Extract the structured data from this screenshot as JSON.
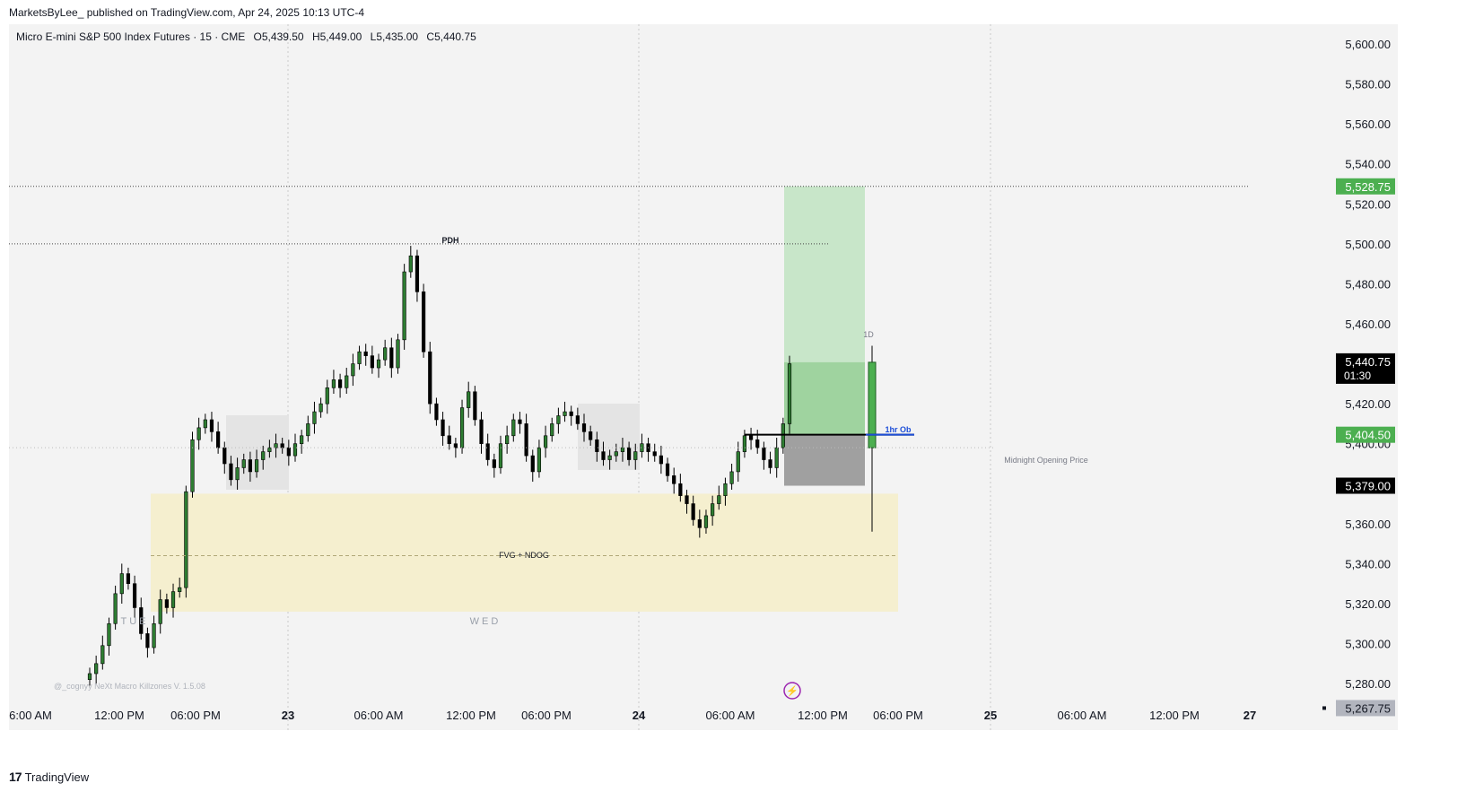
{
  "header": {
    "publish_line": "MarketsByLee_ published on TradingView.com, Apr 24, 2025 10:13 UTC-4"
  },
  "symbol": {
    "name": "Micro E-mini S&P 500 Index Futures · 15 · CME",
    "open": "O5,439.50",
    "high": "H5,449.00",
    "low": "L5,435.00",
    "close": "C5,440.75"
  },
  "footer": {
    "brand": "TradingView",
    "logo": "17"
  },
  "colors": {
    "up": "#2e7d32",
    "down": "#000000",
    "background": "#f3f3f3",
    "fvg": "#f5efcf",
    "target": "#c8e6c9",
    "stop": "#a0a0a0"
  },
  "chart_data": {
    "type": "candlestick",
    "ylim": [
      5262,
      5612
    ],
    "y_ticks": [
      "5,600.00",
      "5,580.00",
      "5,560.00",
      "5,540.00",
      "5,520.00",
      "5,500.00",
      "5,480.00",
      "5,460.00",
      "5,440.00",
      "5,420.00",
      "5,400.00",
      "5,380.00",
      "5,360.00",
      "5,340.00",
      "5,320.00",
      "5,300.00",
      "5,280.00"
    ],
    "x_ticks": [
      "6:00 AM",
      "12:00 PM",
      "06:00 PM",
      "23",
      "06:00 AM",
      "12:00 PM",
      "06:00 PM",
      "24",
      "06:00 AM",
      "12:00 PM",
      "06:00 PM",
      "25",
      "06:00 AM",
      "12:00 PM",
      "27"
    ],
    "price_labels": [
      {
        "text": "5,528.75",
        "value": 5528.75,
        "style": "green"
      },
      {
        "text": "5,440.75",
        "sub": "01:30",
        "value": 5440.75,
        "style": "black"
      },
      {
        "text": "5,404.50",
        "value": 5404.5,
        "style": "green"
      },
      {
        "text": "5,379.00",
        "value": 5379.0,
        "style": "black"
      },
      {
        "text": "5,267.75",
        "value": 5267.75,
        "style": "gray"
      }
    ],
    "annotations": [
      {
        "text": "PDH",
        "value": 5500
      },
      {
        "text": "1hr Ob",
        "value": 5404.5
      },
      {
        "text": "Midnight Opening Price",
        "value": 5398
      },
      {
        "text": "FVG + NDOG",
        "value": 5344
      },
      {
        "text": "TUE",
        "value": 5324
      },
      {
        "text": "WED",
        "value": 5324
      },
      {
        "text": "1D",
        "value": 5459
      },
      {
        "text": "@_cognyy NeXt Macro Killzones V. 1.5.08",
        "value": 5284
      }
    ],
    "levels": {
      "pdh": 5500,
      "target": 5528.75,
      "entry": 5404.5,
      "stop": 5379.0,
      "midnight_open": 5398,
      "fvg_top": 5375,
      "fvg_bottom": 5316,
      "fvg_mid": 5344
    },
    "intraday_close": [
      5285,
      5290,
      5299,
      5310,
      5325,
      5335,
      5330,
      5318,
      5305,
      5298,
      5310,
      5322,
      5318,
      5326,
      5328,
      5376,
      5402,
      5408,
      5412,
      5406,
      5398,
      5390,
      5382,
      5388,
      5392,
      5386,
      5392,
      5396,
      5398,
      5400,
      5398,
      5394,
      5400,
      5404,
      5410,
      5416,
      5420,
      5428,
      5432,
      5428,
      5434,
      5440,
      5446,
      5444,
      5438,
      5442,
      5448,
      5438,
      5452,
      5486,
      5494,
      5476,
      5446,
      5420,
      5412,
      5404,
      5400,
      5398,
      5418,
      5426,
      5412,
      5400,
      5392,
      5388,
      5400,
      5404,
      5412,
      5410,
      5394,
      5386,
      5398,
      5404,
      5410,
      5414,
      5416,
      5414,
      5410,
      5406,
      5402,
      5396,
      5392,
      5394,
      5396,
      5398,
      5392,
      5396,
      5400,
      5396,
      5394,
      5390,
      5384,
      5380,
      5374,
      5370,
      5362,
      5358,
      5364,
      5370,
      5374,
      5380,
      5386,
      5396,
      5404,
      5402,
      5398,
      5392,
      5388,
      5398,
      5410,
      5440
    ],
    "live_candle": {
      "open": 5398,
      "high": 5449,
      "low": 5356,
      "close": 5440.75
    }
  }
}
